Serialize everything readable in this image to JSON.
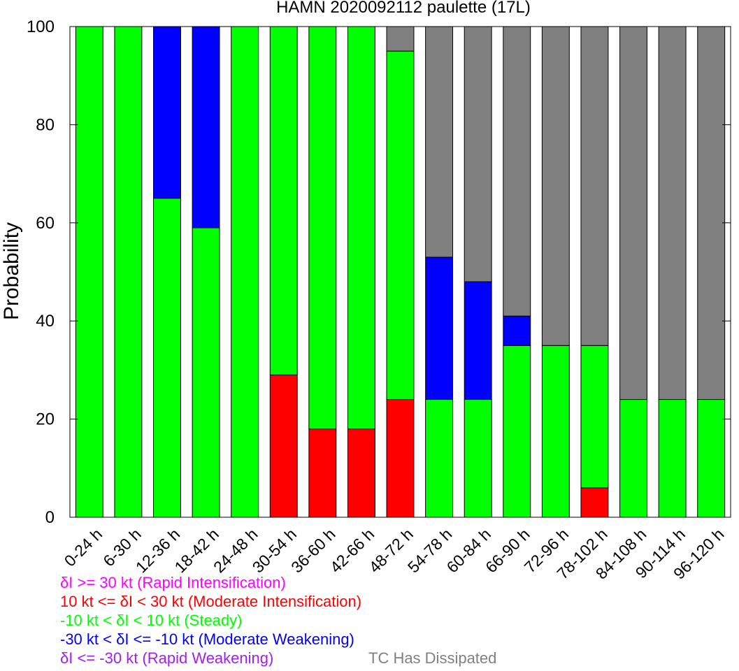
{
  "chart_data": {
    "type": "bar",
    "stacked": true,
    "title": "HAMN 2020092112 paulette (17L)",
    "xlabel": "",
    "ylabel": "Probability",
    "ylim": [
      0,
      100
    ],
    "yticks": [
      0,
      20,
      40,
      60,
      80,
      100
    ],
    "grid": false,
    "categories": [
      "0-24 h",
      "6-30 h",
      "12-36 h",
      "18-42 h",
      "24-48 h",
      "30-54 h",
      "36-60 h",
      "42-66 h",
      "48-72 h",
      "54-78 h",
      "60-84 h",
      "66-90 h",
      "72-96 h",
      "78-102 h",
      "84-108 h",
      "90-114 h",
      "96-120 h"
    ],
    "series": [
      {
        "name": "δI >= 30 kt (Rapid Intensification)",
        "color": "#ff00ff",
        "values": [
          0,
          0,
          0,
          0,
          0,
          0,
          0,
          0,
          0,
          0,
          0,
          0,
          0,
          0,
          0,
          0,
          0
        ]
      },
      {
        "name": "10 kt <= δI < 30 kt (Moderate Intensification)",
        "color": "#ff0000",
        "values": [
          0,
          0,
          0,
          0,
          0,
          29,
          18,
          18,
          24,
          0,
          0,
          0,
          0,
          6,
          0,
          0,
          0
        ]
      },
      {
        "name": "-10 kt < δI < 10 kt (Steady)",
        "color": "#00ff00",
        "values": [
          100,
          100,
          65,
          59,
          100,
          71,
          82,
          82,
          71,
          24,
          24,
          35,
          35,
          29,
          24,
          24,
          24
        ]
      },
      {
        "name": "-30 kt < δI <= -10 kt (Moderate Weakening)",
        "color": "#0000ff",
        "values": [
          0,
          0,
          35,
          41,
          0,
          0,
          0,
          0,
          0,
          29,
          24,
          6,
          0,
          0,
          0,
          0,
          0
        ]
      },
      {
        "name": "δI <= -30 kt (Rapid Weakening)",
        "color": "#a020f0",
        "values": [
          0,
          0,
          0,
          0,
          0,
          0,
          0,
          0,
          0,
          0,
          0,
          0,
          0,
          0,
          0,
          0,
          0
        ]
      },
      {
        "name": "TC Has Dissipated",
        "color": "#808080",
        "values": [
          0,
          0,
          0,
          0,
          0,
          0,
          0,
          0,
          5,
          47,
          52,
          59,
          65,
          65,
          76,
          76,
          76
        ]
      }
    ],
    "legend_position": "bottom-left"
  }
}
